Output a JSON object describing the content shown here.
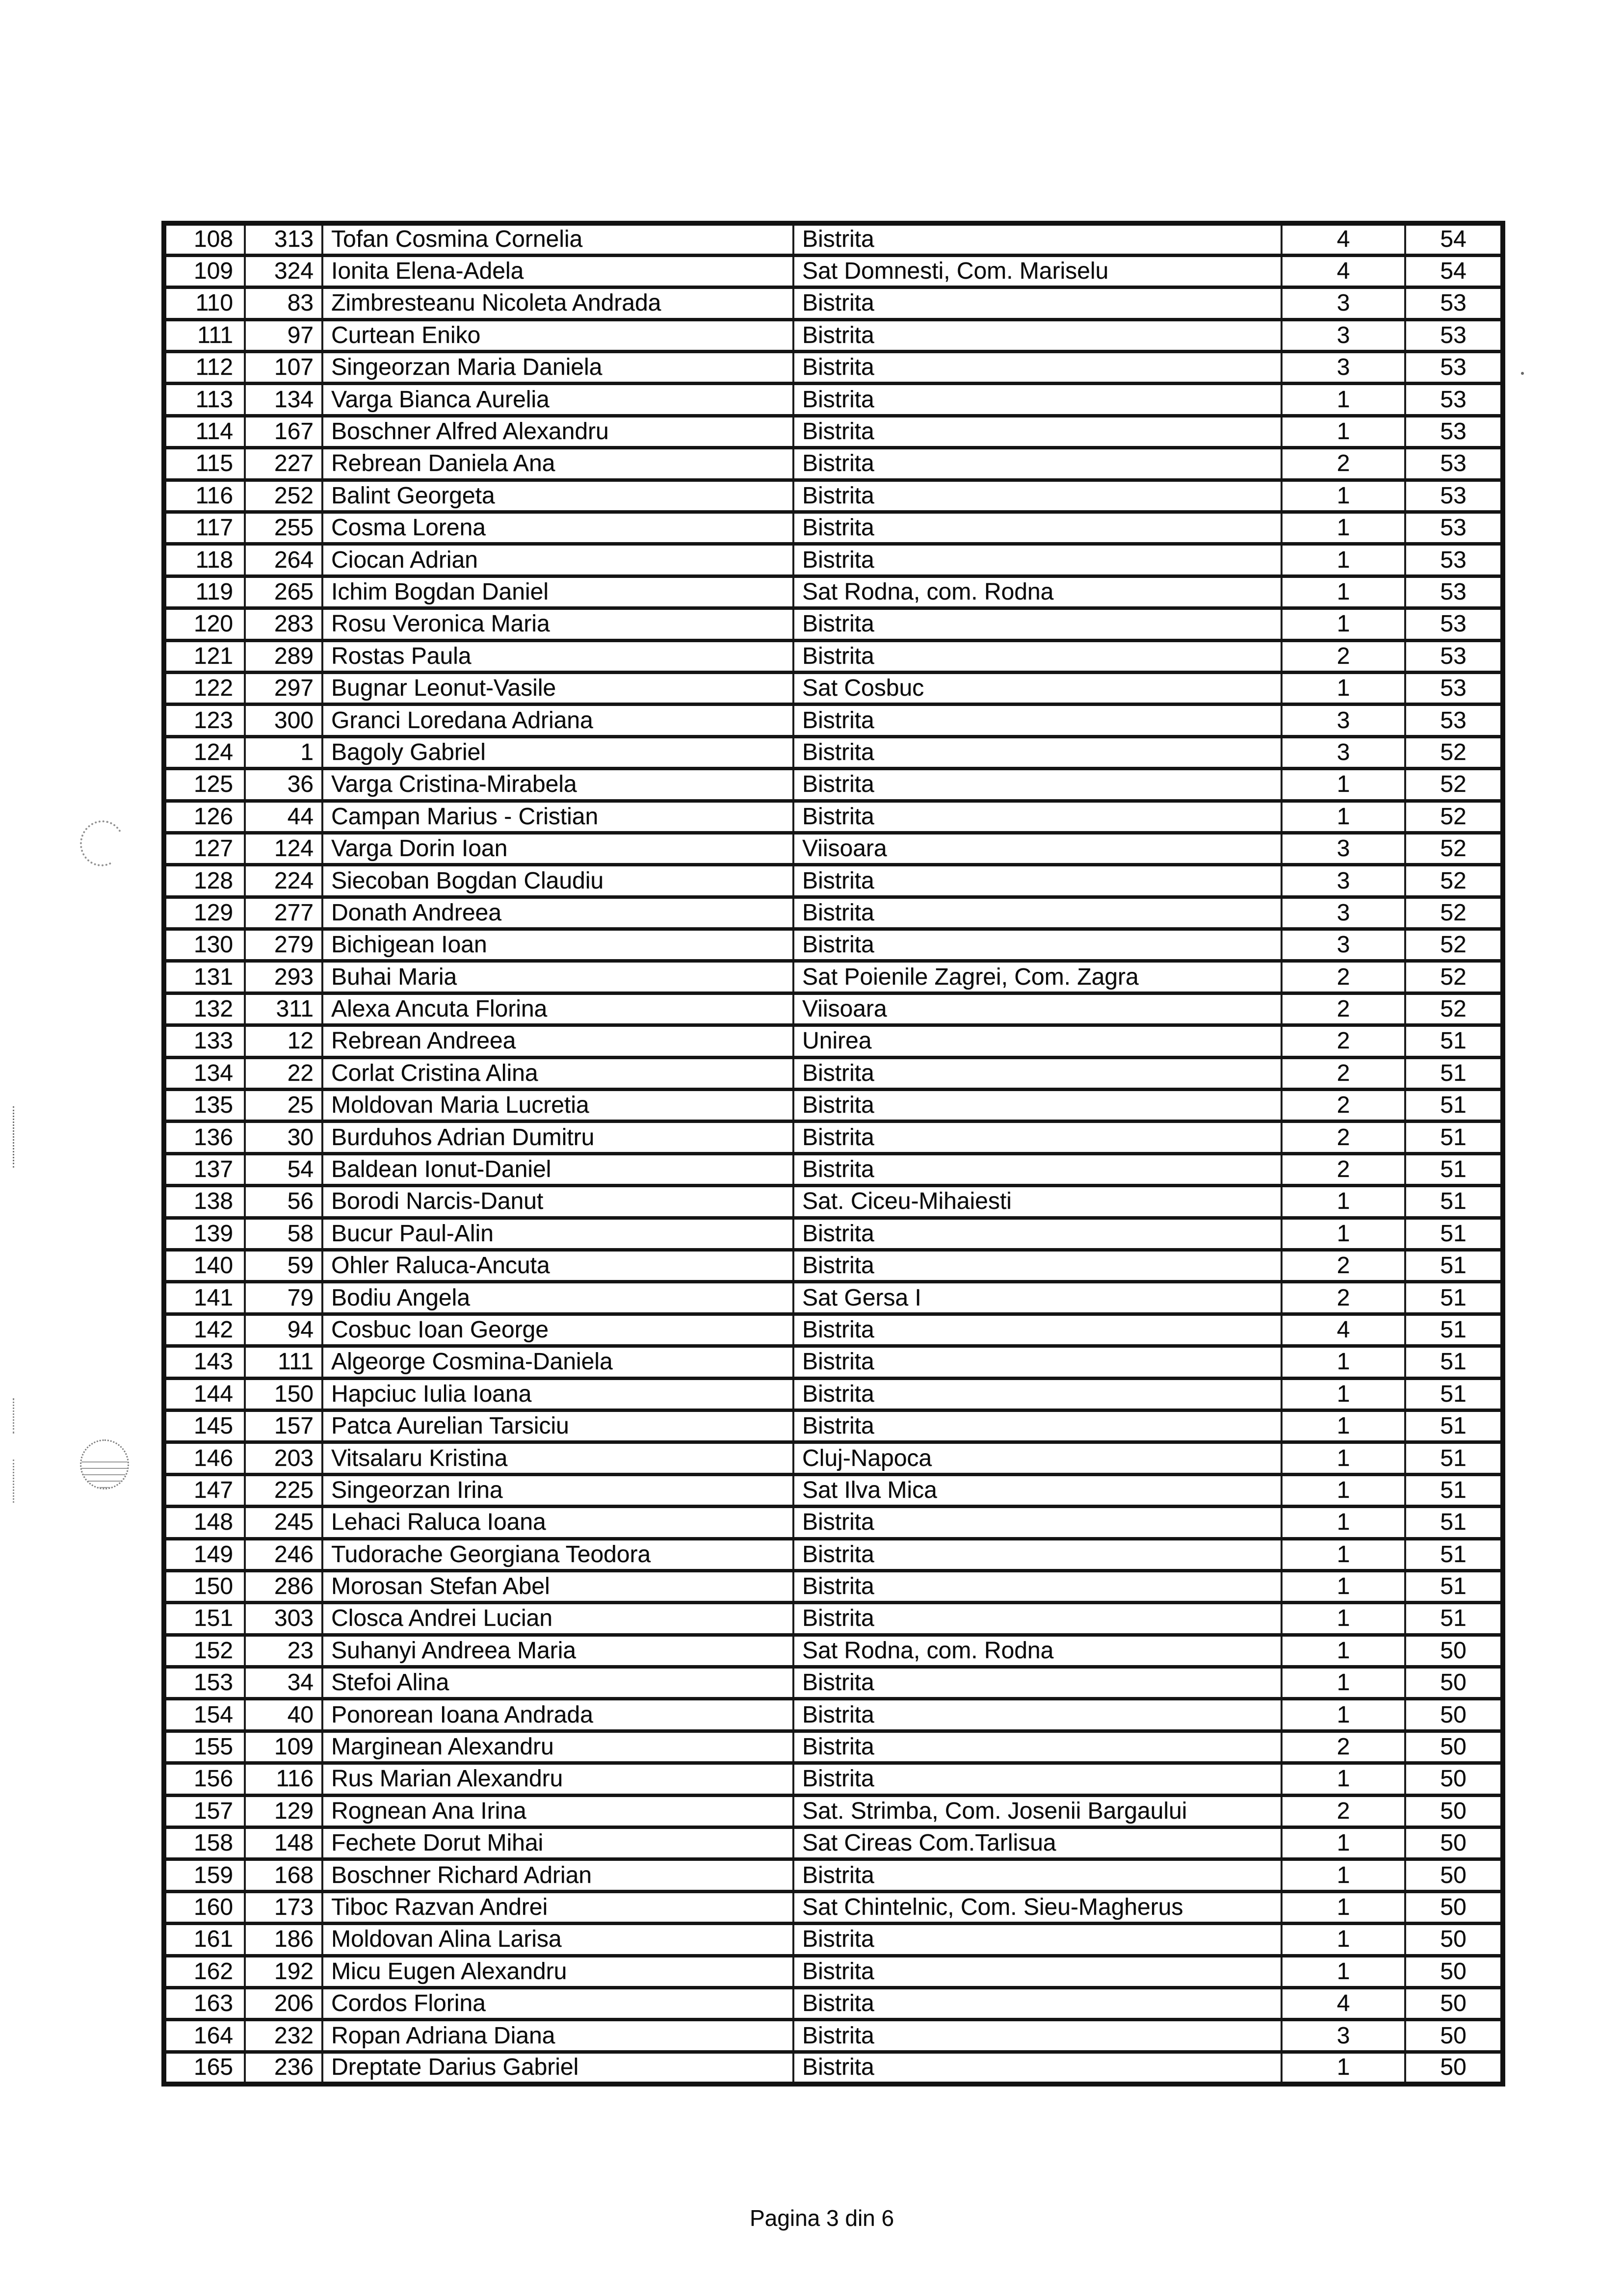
{
  "document": {
    "footer": "Pagina 3 din 6"
  },
  "table": {
    "rows": [
      {
        "rank": "108",
        "id": "313",
        "name": "Tofan Cosmina Cornelia",
        "location": "Bistrita",
        "score1": "4",
        "score2": "54"
      },
      {
        "rank": "109",
        "id": "324",
        "name": "Ionita Elena-Adela",
        "location": "Sat Domnesti, Com. Mariselu",
        "score1": "4",
        "score2": "54"
      },
      {
        "rank": "110",
        "id": "83",
        "name": "Zimbresteanu Nicoleta Andrada",
        "location": "Bistrita",
        "score1": "3",
        "score2": "53"
      },
      {
        "rank": "111",
        "id": "97",
        "name": "Curtean Eniko",
        "location": "Bistrita",
        "score1": "3",
        "score2": "53"
      },
      {
        "rank": "112",
        "id": "107",
        "name": "Singeorzan Maria Daniela",
        "location": "Bistrita",
        "score1": "3",
        "score2": "53"
      },
      {
        "rank": "113",
        "id": "134",
        "name": "Varga Bianca Aurelia",
        "location": "Bistrita",
        "score1": "1",
        "score2": "53"
      },
      {
        "rank": "114",
        "id": "167",
        "name": "Boschner Alfred Alexandru",
        "location": "Bistrita",
        "score1": "1",
        "score2": "53"
      },
      {
        "rank": "115",
        "id": "227",
        "name": "Rebrean Daniela Ana",
        "location": "Bistrita",
        "score1": "2",
        "score2": "53"
      },
      {
        "rank": "116",
        "id": "252",
        "name": "Balint Georgeta",
        "location": "Bistrita",
        "score1": "1",
        "score2": "53"
      },
      {
        "rank": "117",
        "id": "255",
        "name": "Cosma Lorena",
        "location": "Bistrita",
        "score1": "1",
        "score2": "53"
      },
      {
        "rank": "118",
        "id": "264",
        "name": "Ciocan Adrian",
        "location": "Bistrita",
        "score1": "1",
        "score2": "53"
      },
      {
        "rank": "119",
        "id": "265",
        "name": "Ichim Bogdan Daniel",
        "location": "Sat Rodna, com. Rodna",
        "score1": "1",
        "score2": "53"
      },
      {
        "rank": "120",
        "id": "283",
        "name": "Rosu Veronica Maria",
        "location": "Bistrita",
        "score1": "1",
        "score2": "53"
      },
      {
        "rank": "121",
        "id": "289",
        "name": "Rostas Paula",
        "location": "Bistrita",
        "score1": "2",
        "score2": "53"
      },
      {
        "rank": "122",
        "id": "297",
        "name": "Bugnar Leonut-Vasile",
        "location": "Sat Cosbuc",
        "score1": "1",
        "score2": "53"
      },
      {
        "rank": "123",
        "id": "300",
        "name": "Granci Loredana Adriana",
        "location": "Bistrita",
        "score1": "3",
        "score2": "53"
      },
      {
        "rank": "124",
        "id": "1",
        "name": "Bagoly Gabriel",
        "location": "Bistrita",
        "score1": "3",
        "score2": "52"
      },
      {
        "rank": "125",
        "id": "36",
        "name": "Varga Cristina-Mirabela",
        "location": "Bistrita",
        "score1": "1",
        "score2": "52"
      },
      {
        "rank": "126",
        "id": "44",
        "name": "Campan Marius - Cristian",
        "location": "Bistrita",
        "score1": "1",
        "score2": "52"
      },
      {
        "rank": "127",
        "id": "124",
        "name": "Varga Dorin Ioan",
        "location": "Viisoara",
        "score1": "3",
        "score2": "52"
      },
      {
        "rank": "128",
        "id": "224",
        "name": "Siecoban Bogdan Claudiu",
        "location": "Bistrita",
        "score1": "3",
        "score2": "52"
      },
      {
        "rank": "129",
        "id": "277",
        "name": "Donath Andreea",
        "location": "Bistrita",
        "score1": "3",
        "score2": "52"
      },
      {
        "rank": "130",
        "id": "279",
        "name": "Bichigean Ioan",
        "location": "Bistrita",
        "score1": "3",
        "score2": "52"
      },
      {
        "rank": "131",
        "id": "293",
        "name": "Buhai Maria",
        "location": "Sat Poienile Zagrei, Com. Zagra",
        "score1": "2",
        "score2": "52"
      },
      {
        "rank": "132",
        "id": "311",
        "name": "Alexa Ancuta Florina",
        "location": "Viisoara",
        "score1": "2",
        "score2": "52"
      },
      {
        "rank": "133",
        "id": "12",
        "name": "Rebrean Andreea",
        "location": "Unirea",
        "score1": "2",
        "score2": "51"
      },
      {
        "rank": "134",
        "id": "22",
        "name": "Corlat Cristina Alina",
        "location": "Bistrita",
        "score1": "2",
        "score2": "51"
      },
      {
        "rank": "135",
        "id": "25",
        "name": "Moldovan Maria Lucretia",
        "location": "Bistrita",
        "score1": "2",
        "score2": "51"
      },
      {
        "rank": "136",
        "id": "30",
        "name": "Burduhos Adrian Dumitru",
        "location": "Bistrita",
        "score1": "2",
        "score2": "51"
      },
      {
        "rank": "137",
        "id": "54",
        "name": "Baldean Ionut-Daniel",
        "location": "Bistrita",
        "score1": "2",
        "score2": "51"
      },
      {
        "rank": "138",
        "id": "56",
        "name": "Borodi Narcis-Danut",
        "location": "Sat. Ciceu-Mihaiesti",
        "score1": "1",
        "score2": "51"
      },
      {
        "rank": "139",
        "id": "58",
        "name": "Bucur Paul-Alin",
        "location": "Bistrita",
        "score1": "1",
        "score2": "51"
      },
      {
        "rank": "140",
        "id": "59",
        "name": "Ohler Raluca-Ancuta",
        "location": "Bistrita",
        "score1": "2",
        "score2": "51"
      },
      {
        "rank": "141",
        "id": "79",
        "name": "Bodiu Angela",
        "location": "Sat Gersa I",
        "score1": "2",
        "score2": "51"
      },
      {
        "rank": "142",
        "id": "94",
        "name": "Cosbuc Ioan George",
        "location": "Bistrita",
        "score1": "4",
        "score2": "51"
      },
      {
        "rank": "143",
        "id": "111",
        "name": "Algeorge Cosmina-Daniela",
        "location": "Bistrita",
        "score1": "1",
        "score2": "51"
      },
      {
        "rank": "144",
        "id": "150",
        "name": "Hapciuc Iulia Ioana",
        "location": "Bistrita",
        "score1": "1",
        "score2": "51"
      },
      {
        "rank": "145",
        "id": "157",
        "name": "Patca Aurelian Tarsiciu",
        "location": "Bistrita",
        "score1": "1",
        "score2": "51"
      },
      {
        "rank": "146",
        "id": "203",
        "name": "Vitsalaru Kristina",
        "location": "Cluj-Napoca",
        "score1": "1",
        "score2": "51"
      },
      {
        "rank": "147",
        "id": "225",
        "name": "Singeorzan Irina",
        "location": "Sat Ilva Mica",
        "score1": "1",
        "score2": "51"
      },
      {
        "rank": "148",
        "id": "245",
        "name": "Lehaci Raluca Ioana",
        "location": "Bistrita",
        "score1": "1",
        "score2": "51"
      },
      {
        "rank": "149",
        "id": "246",
        "name": "Tudorache Georgiana Teodora",
        "location": "Bistrita",
        "score1": "1",
        "score2": "51"
      },
      {
        "rank": "150",
        "id": "286",
        "name": "Morosan Stefan Abel",
        "location": "Bistrita",
        "score1": "1",
        "score2": "51"
      },
      {
        "rank": "151",
        "id": "303",
        "name": "Closca Andrei Lucian",
        "location": "Bistrita",
        "score1": "1",
        "score2": "51"
      },
      {
        "rank": "152",
        "id": "23",
        "name": "Suhanyi Andreea Maria",
        "location": "Sat Rodna, com. Rodna",
        "score1": "1",
        "score2": "50"
      },
      {
        "rank": "153",
        "id": "34",
        "name": "Stefoi Alina",
        "location": "Bistrita",
        "score1": "1",
        "score2": "50"
      },
      {
        "rank": "154",
        "id": "40",
        "name": "Ponorean Ioana Andrada",
        "location": "Bistrita",
        "score1": "1",
        "score2": "50"
      },
      {
        "rank": "155",
        "id": "109",
        "name": "Marginean Alexandru",
        "location": "Bistrita",
        "score1": "2",
        "score2": "50"
      },
      {
        "rank": "156",
        "id": "116",
        "name": "Rus Marian Alexandru",
        "location": "Bistrita",
        "score1": "1",
        "score2": "50"
      },
      {
        "rank": "157",
        "id": "129",
        "name": "Rognean Ana Irina",
        "location": "Sat. Strimba, Com. Josenii Bargaului",
        "score1": "2",
        "score2": "50"
      },
      {
        "rank": "158",
        "id": "148",
        "name": "Fechete Dorut Mihai",
        "location": "Sat Cireas Com.Tarlisua",
        "score1": "1",
        "score2": "50"
      },
      {
        "rank": "159",
        "id": "168",
        "name": "Boschner Richard Adrian",
        "location": "Bistrita",
        "score1": "1",
        "score2": "50"
      },
      {
        "rank": "160",
        "id": "173",
        "name": "Tiboc Razvan Andrei",
        "location": "Sat Chintelnic, Com. Sieu-Magherus",
        "score1": "1",
        "score2": "50"
      },
      {
        "rank": "161",
        "id": "186",
        "name": "Moldovan Alina Larisa",
        "location": "Bistrita",
        "score1": "1",
        "score2": "50"
      },
      {
        "rank": "162",
        "id": "192",
        "name": "Micu Eugen Alexandru",
        "location": "Bistrita",
        "score1": "1",
        "score2": "50"
      },
      {
        "rank": "163",
        "id": "206",
        "name": "Cordos Florina",
        "location": "Bistrita",
        "score1": "4",
        "score2": "50"
      },
      {
        "rank": "164",
        "id": "232",
        "name": "Ropan Adriana Diana",
        "location": "Bistrita",
        "score1": "3",
        "score2": "50"
      },
      {
        "rank": "165",
        "id": "236",
        "name": "Dreptate Darius Gabriel",
        "location": "Bistrita",
        "score1": "1",
        "score2": "50"
      }
    ]
  }
}
